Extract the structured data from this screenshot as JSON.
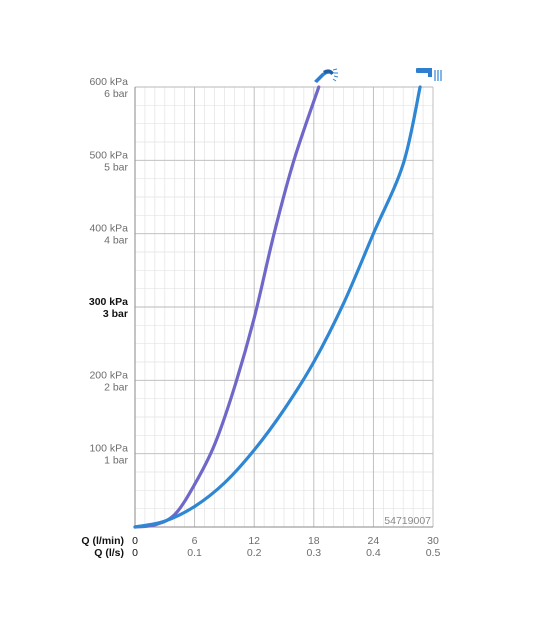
{
  "chart_data": {
    "type": "line",
    "x_primary": {
      "label": "Q (l/min)",
      "ticks": [
        "0",
        "6",
        "12",
        "18",
        "24",
        "30"
      ],
      "range": [
        0,
        30
      ]
    },
    "x_secondary": {
      "label": "Q (l/s)",
      "ticks": [
        "0",
        "0.1",
        "0.2",
        "0.3",
        "0.4",
        "0.5"
      ]
    },
    "y": {
      "range_kpa": [
        0,
        600
      ],
      "ticks": [
        {
          "value": 100,
          "kpa_label": "100 kPa",
          "bar_label": "1 bar",
          "bold": false
        },
        {
          "value": 200,
          "kpa_label": "200 kPa",
          "bar_label": "2 bar",
          "bold": false
        },
        {
          "value": 300,
          "kpa_label": "300 kPa",
          "bar_label": "3 bar",
          "bold": true
        },
        {
          "value": 400,
          "kpa_label": "400 kPa",
          "bar_label": "4 bar",
          "bold": false
        },
        {
          "value": 500,
          "kpa_label": "500 kPa",
          "bar_label": "5 bar",
          "bold": false
        },
        {
          "value": 600,
          "kpa_label": "600 kPa",
          "bar_label": "6 bar",
          "bold": false
        }
      ]
    },
    "grid": true,
    "series": [
      {
        "icon": "hand-shower-icon",
        "color": "#6f68c8",
        "points": [
          [
            0,
            0
          ],
          [
            2,
            3
          ],
          [
            4,
            17
          ],
          [
            6,
            58
          ],
          [
            8,
            112
          ],
          [
            10,
            190
          ],
          [
            12,
            285
          ],
          [
            14,
            400
          ],
          [
            16,
            500
          ],
          [
            18.5,
            600
          ]
        ]
      },
      {
        "icon": "bath-spout-icon",
        "color": "#2f86d3",
        "points": [
          [
            0,
            0
          ],
          [
            3,
            8
          ],
          [
            6,
            28
          ],
          [
            9,
            60
          ],
          [
            12,
            105
          ],
          [
            15,
            160
          ],
          [
            18,
            225
          ],
          [
            21,
            305
          ],
          [
            24,
            400
          ],
          [
            27,
            495
          ],
          [
            28.7,
            600
          ]
        ]
      }
    ],
    "annotations": [
      "54719007"
    ]
  }
}
